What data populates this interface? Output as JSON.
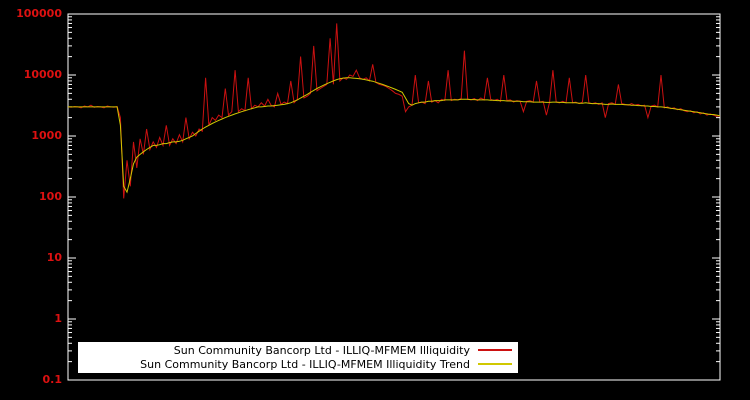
{
  "chart_data": {
    "type": "line",
    "title": "",
    "xlabel": "",
    "ylabel": "",
    "y_scale": "log",
    "ylim": [
      0.1,
      100000
    ],
    "yticks": [
      "100000",
      "10000",
      "1000",
      "100",
      "10",
      "1",
      "0.1"
    ],
    "grid": false,
    "legend_position": "bottom-center",
    "background_color": "#000000",
    "frame_color": "#ffffff",
    "tick_label_color": "#dd1111",
    "series": [
      {
        "name": "Sun Community Bancorp Ltd - ILLIQ-MFMEM Illiquidity",
        "color": "#cc1111",
        "values": [
          3000,
          2950,
          3050,
          3000,
          2900,
          3100,
          3000,
          3200,
          2950,
          3050,
          3000,
          2900,
          3100,
          3000,
          2950,
          3050,
          2000,
          95,
          400,
          150,
          800,
          300,
          900,
          500,
          1300,
          600,
          800,
          650,
          950,
          700,
          1500,
          700,
          900,
          750,
          1050,
          800,
          2000,
          900,
          1150,
          1000,
          1300,
          1200,
          9000,
          1500,
          2000,
          1800,
          2200,
          2000,
          6000,
          2200,
          2500,
          12000,
          2500,
          2800,
          2600,
          9000,
          2800,
          3200,
          3000,
          3500,
          3100,
          4000,
          3200,
          3000,
          5000,
          3300,
          3600,
          3400,
          8000,
          3500,
          4000,
          20000,
          4200,
          4500,
          5000,
          30000,
          5500,
          6000,
          6500,
          7000,
          40000,
          7000,
          70000,
          8000,
          9000,
          8500,
          10000,
          9500,
          12000,
          9000,
          8500,
          9000,
          8000,
          15000,
          7500,
          7000,
          6800,
          6500,
          6000,
          5500,
          5000,
          4800,
          4500,
          2500,
          3000,
          3200,
          10000,
          3500,
          3600,
          3400,
          8000,
          3600,
          3800,
          3500,
          4000,
          3800,
          12000,
          3800,
          4000,
          3900,
          4100,
          25000,
          4000,
          3900,
          4100,
          3800,
          4200,
          3900,
          9000,
          4000,
          3800,
          4000,
          3700,
          10000,
          3800,
          3900,
          3600,
          3800,
          3700,
          2500,
          3700,
          3800,
          3600,
          8000,
          3600,
          3700,
          2200,
          3600,
          12000,
          3600,
          3500,
          3700,
          3500,
          9000,
          3500,
          3600,
          3400,
          3600,
          10000,
          3500,
          3400,
          3500,
          3300,
          3500,
          2000,
          3400,
          3500,
          3300,
          7000,
          3400,
          3300,
          3200,
          3400,
          3200,
          3300,
          3100,
          3200,
          2000,
          3100,
          3200,
          3000,
          10000,
          2900,
          3000,
          2800,
          2900,
          2700,
          2800,
          2600,
          2500,
          2600,
          2400,
          2500,
          2300,
          2400,
          2200,
          2300,
          2200,
          2100,
          2150
        ]
      },
      {
        "name": "Sun Community Bancorp Ltd - ILLIQ-MFMEM Illiquidity Trend",
        "color": "#d0c800",
        "values": [
          3000,
          3000,
          3000,
          3000,
          3000,
          3000,
          3000,
          3000,
          3000,
          3000,
          3000,
          3000,
          3000,
          3000,
          3000,
          3000,
          1500,
          150,
          120,
          200,
          350,
          450,
          500,
          550,
          600,
          650,
          700,
          700,
          720,
          750,
          750,
          780,
          800,
          800,
          820,
          850,
          900,
          950,
          1000,
          1100,
          1200,
          1300,
          1400,
          1500,
          1600,
          1700,
          1800,
          1900,
          2000,
          2100,
          2200,
          2300,
          2400,
          2500,
          2600,
          2700,
          2800,
          2900,
          3000,
          3000,
          3050,
          3100,
          3100,
          3150,
          3200,
          3250,
          3300,
          3400,
          3500,
          3700,
          3900,
          4200,
          4500,
          4800,
          5200,
          5600,
          6000,
          6400,
          6800,
          7200,
          7600,
          8000,
          8400,
          8700,
          8900,
          9000,
          9000,
          8900,
          8800,
          8700,
          8500,
          8300,
          8100,
          7900,
          7600,
          7300,
          7000,
          6700,
          6400,
          6100,
          5800,
          5500,
          5200,
          4200,
          3400,
          3200,
          3400,
          3500,
          3600,
          3600,
          3700,
          3700,
          3800,
          3800,
          3800,
          3900,
          3900,
          3900,
          3900,
          3900,
          4000,
          4000,
          4000,
          3950,
          3950,
          3900,
          3900,
          3900,
          3900,
          3850,
          3850,
          3800,
          3800,
          3800,
          3750,
          3750,
          3700,
          3700,
          3700,
          3650,
          3650,
          3650,
          3600,
          3600,
          3600,
          3600,
          3550,
          3550,
          3600,
          3600,
          3550,
          3550,
          3500,
          3500,
          3500,
          3500,
          3450,
          3450,
          3500,
          3450,
          3400,
          3400,
          3400,
          3350,
          3300,
          3300,
          3350,
          3300,
          3300,
          3300,
          3250,
          3250,
          3200,
          3200,
          3150,
          3150,
          3100,
          3100,
          3050,
          3050,
          3000,
          3000,
          2950,
          2900,
          2850,
          2800,
          2750,
          2700,
          2650,
          2600,
          2550,
          2500,
          2450,
          2400,
          2350,
          2300,
          2250,
          2250,
          2200,
          2150
        ]
      }
    ]
  }
}
